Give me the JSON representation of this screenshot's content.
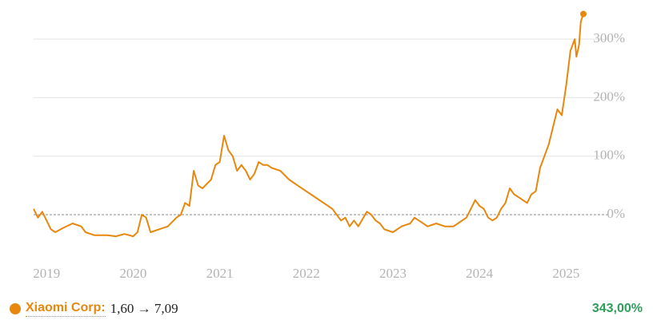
{
  "chart_data": {
    "type": "line",
    "x": [
      2018.85,
      2018.9,
      2018.95,
      2019.0,
      2019.05,
      2019.1,
      2019.2,
      2019.3,
      2019.4,
      2019.45,
      2019.55,
      2019.7,
      2019.8,
      2019.9,
      2020.0,
      2020.05,
      2020.1,
      2020.15,
      2020.2,
      2020.3,
      2020.4,
      2020.5,
      2020.55,
      2020.6,
      2020.65,
      2020.7,
      2020.75,
      2020.8,
      2020.9,
      2020.95,
      2021.0,
      2021.05,
      2021.1,
      2021.15,
      2021.2,
      2021.25,
      2021.3,
      2021.35,
      2021.4,
      2021.45,
      2021.5,
      2021.55,
      2021.6,
      2021.7,
      2021.8,
      2021.9,
      2022.0,
      2022.1,
      2022.2,
      2022.3,
      2022.35,
      2022.4,
      2022.45,
      2022.5,
      2022.55,
      2022.6,
      2022.7,
      2022.75,
      2022.8,
      2022.85,
      2022.9,
      2023.0,
      2023.1,
      2023.2,
      2023.25,
      2023.3,
      2023.4,
      2023.5,
      2023.6,
      2023.7,
      2023.75,
      2023.8,
      2023.85,
      2023.9,
      2023.95,
      2024.0,
      2024.05,
      2024.1,
      2024.15,
      2024.2,
      2024.25,
      2024.3,
      2024.35,
      2024.4,
      2024.45,
      2024.5,
      2024.55,
      2024.6,
      2024.65,
      2024.7,
      2024.75,
      2024.8,
      2024.85,
      2024.9,
      2024.95,
      2025.0,
      2025.05,
      2025.1,
      2025.12,
      2025.15,
      2025.17,
      2025.2
    ],
    "series": [
      {
        "name": "Xiaomi Corp:",
        "color": "#e8870e",
        "values": [
          10,
          -5,
          5,
          -10,
          -25,
          -30,
          -22,
          -15,
          -20,
          -30,
          -35,
          -35,
          -37,
          -33,
          -37,
          -30,
          0,
          -5,
          -30,
          -25,
          -20,
          -5,
          0,
          20,
          15,
          75,
          50,
          45,
          60,
          85,
          90,
          135,
          110,
          100,
          75,
          85,
          75,
          60,
          70,
          90,
          85,
          85,
          80,
          75,
          60,
          50,
          40,
          30,
          20,
          10,
          0,
          -10,
          -5,
          -20,
          -10,
          -20,
          5,
          0,
          -10,
          -15,
          -25,
          -30,
          -20,
          -15,
          -5,
          -10,
          -20,
          -15,
          -20,
          -20,
          -15,
          -10,
          -5,
          10,
          25,
          15,
          10,
          -5,
          -10,
          -5,
          10,
          20,
          45,
          35,
          30,
          25,
          20,
          35,
          40,
          80,
          100,
          120,
          150,
          180,
          170,
          220,
          280,
          300,
          270,
          290,
          330,
          343
        ]
      }
    ],
    "price_range": "1,60 → 7,09",
    "change": "343,00%",
    "xlim": [
      2018.85,
      2025.2
    ],
    "xticks": [
      2019,
      2020,
      2021,
      2022,
      2023,
      2024,
      2025
    ],
    "ylim": [
      -75,
      350
    ],
    "yticks": [
      {
        "value": 0,
        "label": "0%"
      },
      {
        "value": 100,
        "label": "100%"
      },
      {
        "value": 200,
        "label": "200%"
      },
      {
        "value": 300,
        "label": "300%"
      }
    ],
    "grid": true
  }
}
